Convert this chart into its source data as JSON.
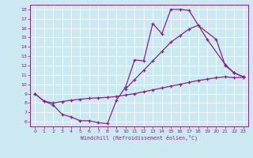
{
  "xlabel": "Windchill (Refroidissement éolien,°C)",
  "bg_color": "#cce8f0",
  "line_color": "#882288",
  "xlim": [
    -0.5,
    23.5
  ],
  "ylim": [
    5.5,
    18.5
  ],
  "xticks": [
    0,
    1,
    2,
    3,
    4,
    5,
    6,
    7,
    8,
    9,
    10,
    11,
    12,
    13,
    14,
    15,
    16,
    17,
    18,
    19,
    20,
    21,
    22,
    23
  ],
  "yticks": [
    6,
    7,
    8,
    9,
    10,
    11,
    12,
    13,
    14,
    15,
    16,
    17,
    18
  ],
  "series1_x": [
    0,
    1,
    2,
    3,
    4,
    5,
    6,
    7,
    8,
    9,
    10,
    11,
    12,
    13,
    14,
    15,
    16,
    17,
    19,
    21,
    22,
    23
  ],
  "series1_y": [
    9.0,
    8.2,
    7.8,
    6.8,
    6.5,
    6.1,
    6.1,
    5.9,
    5.8,
    8.3,
    9.7,
    12.6,
    12.5,
    16.5,
    15.4,
    18.0,
    18.0,
    17.9,
    14.8,
    12.1,
    11.2,
    10.8
  ],
  "series2_x": [
    0,
    1,
    2,
    3,
    4,
    5,
    6,
    7,
    8,
    9,
    10,
    11,
    12,
    13,
    14,
    15,
    16,
    17,
    18,
    19,
    20,
    21,
    22,
    23
  ],
  "series2_y": [
    9.0,
    8.2,
    8.0,
    8.15,
    8.3,
    8.4,
    8.5,
    8.55,
    8.6,
    8.7,
    8.85,
    9.0,
    9.2,
    9.4,
    9.6,
    9.8,
    10.0,
    10.2,
    10.4,
    10.55,
    10.7,
    10.8,
    10.7,
    10.75
  ],
  "series3_x": [
    10,
    11,
    12,
    13,
    14,
    15,
    16,
    17,
    18,
    20,
    21,
    22,
    23
  ],
  "series3_y": [
    9.5,
    10.5,
    11.5,
    12.5,
    13.5,
    14.5,
    15.2,
    15.9,
    16.3,
    14.8,
    12.0,
    11.2,
    10.8
  ]
}
